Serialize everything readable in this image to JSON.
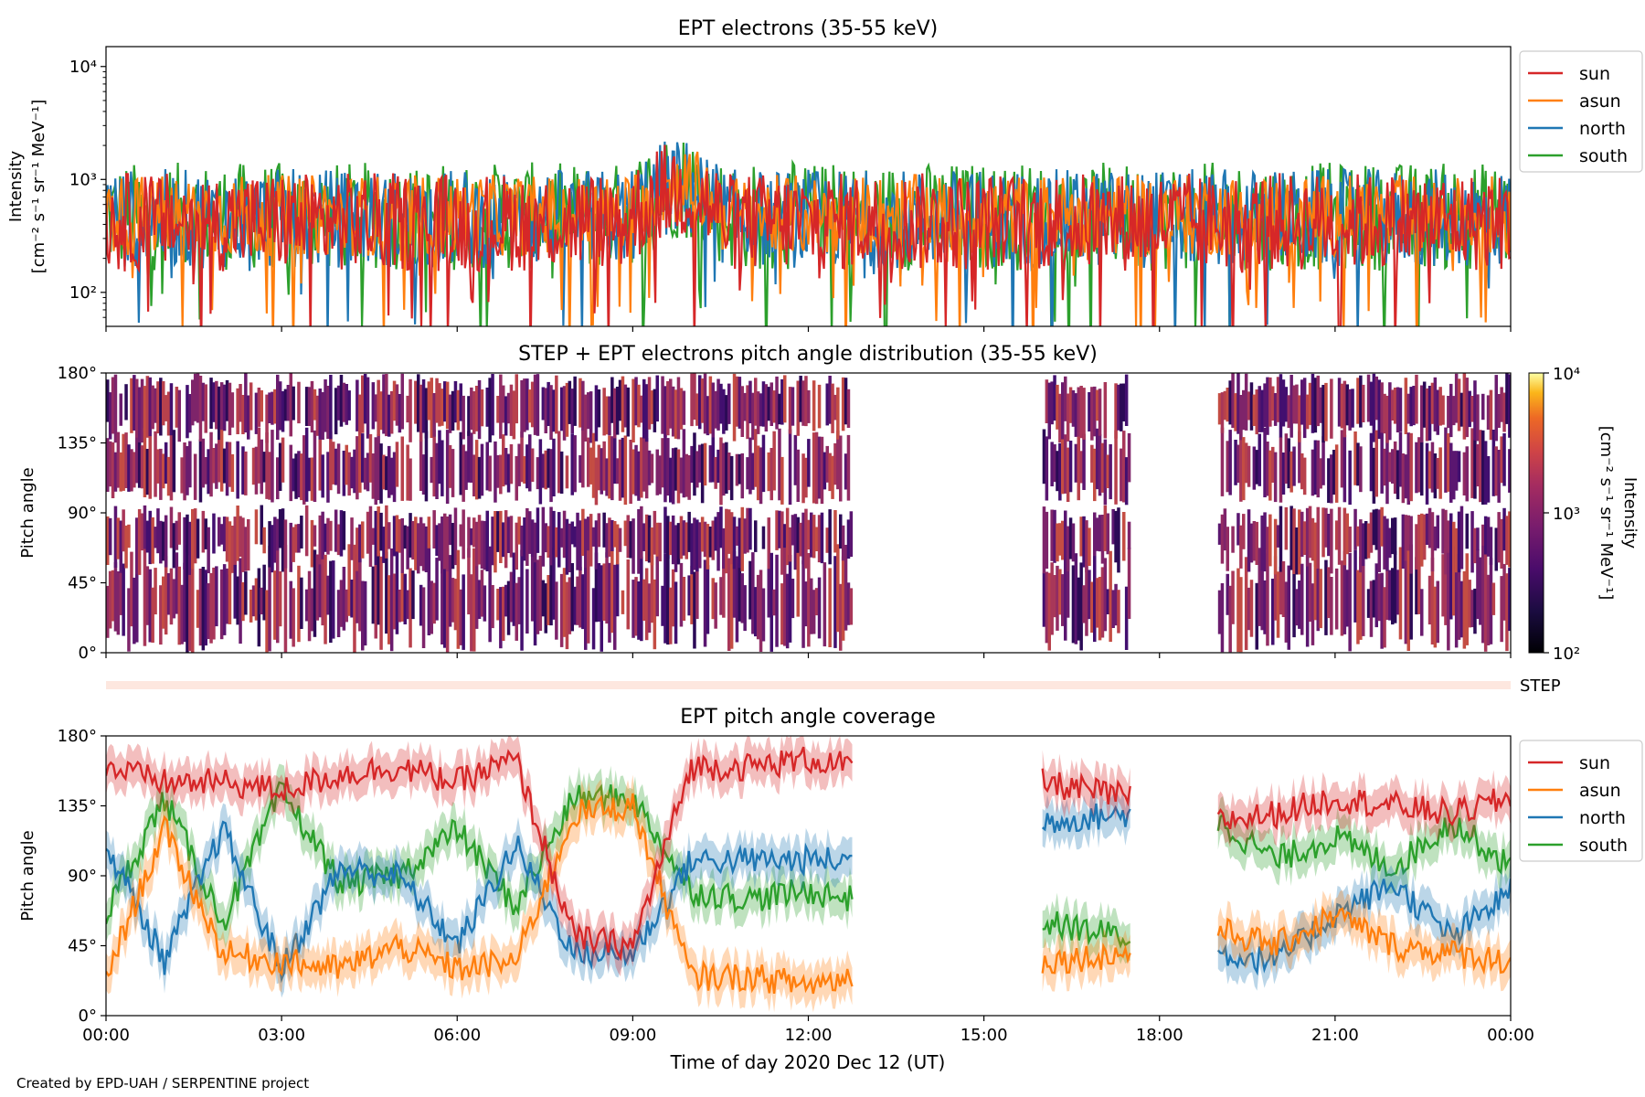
{
  "credit": "Created by EPD-UAH / SERPENTINE project",
  "xlabel": "Time of day 2020 Dec 12 (UT)",
  "xticks": [
    "00:00",
    "03:00",
    "06:00",
    "09:00",
    "12:00",
    "15:00",
    "18:00",
    "21:00",
    "00:00"
  ],
  "colors": {
    "sun": "#d62728",
    "asun": "#ff7f0e",
    "north": "#1f77b4",
    "south": "#2ca02c"
  },
  "chart_data": [
    {
      "type": "line",
      "title": "EPT electrons (35-55 keV)",
      "ylabel_line1": "Intensity",
      "ylabel_line2": "[cm⁻² s⁻¹ sr⁻¹ MeV⁻¹]",
      "yscale": "log",
      "ylim": [
        50,
        15000
      ],
      "yticks": [
        "10²",
        "10³",
        "10⁴"
      ],
      "ytick_values": [
        100,
        1000,
        10000
      ],
      "x_range_hours": [
        0,
        24
      ],
      "legend": [
        "sun",
        "asun",
        "north",
        "south"
      ],
      "legend_position": "outside-right-top",
      "series_baseline": {
        "sun": {
          "median": 420,
          "spread": 0.55
        },
        "asun": {
          "median": 480,
          "spread": 0.45
        },
        "north": {
          "median": 450,
          "spread": 0.55
        },
        "south": {
          "median": 470,
          "spread": 0.6
        }
      },
      "notable": "enhancement ~09:00-10:30 reaching ~2000"
    },
    {
      "type": "heatmap",
      "title": "STEP + EPT electrons pitch angle distribution (35-55 keV)",
      "ylabel": "Pitch angle",
      "yticks": [
        "0°",
        "45°",
        "90°",
        "135°",
        "180°"
      ],
      "ytick_values": [
        0,
        45,
        90,
        135,
        180
      ],
      "colorbar_label_line1": "Intensity",
      "colorbar_label_line2": "[cm⁻² s⁻¹ sr⁻¹ MeV⁻¹]",
      "colorbar_ticks": [
        "10²",
        "10³",
        "10⁴"
      ],
      "colorbar_range": [
        100,
        10000
      ],
      "data_intervals_hours": [
        [
          0,
          12.75
        ],
        [
          16.0,
          17.5
        ],
        [
          19.0,
          24.0
        ]
      ]
    },
    {
      "type": "bar",
      "label": "STEP",
      "color": "#fde7df"
    },
    {
      "type": "line",
      "title": "EPT pitch angle coverage",
      "ylabel": "Pitch angle",
      "yticks": [
        "0°",
        "45°",
        "90°",
        "135°",
        "180°"
      ],
      "ytick_values": [
        0,
        45,
        90,
        135,
        180
      ],
      "ylim": [
        0,
        180
      ],
      "legend": [
        "sun",
        "asun",
        "north",
        "south"
      ],
      "legend_position": "outside-right-top",
      "data_intervals_hours": [
        [
          0,
          12.75
        ],
        [
          16.0,
          17.5
        ],
        [
          19.0,
          24.0
        ]
      ],
      "series": [
        {
          "name": "sun",
          "anchors_hours": [
            0,
            1,
            2,
            3,
            4,
            5,
            6,
            7,
            8,
            9,
            10,
            11,
            12,
            12.75,
            16,
            17.5,
            19,
            20,
            21,
            22,
            23,
            24
          ],
          "values": [
            160,
            150,
            150,
            145,
            155,
            160,
            150,
            165,
            50,
            45,
            160,
            160,
            165,
            160,
            150,
            140,
            125,
            130,
            140,
            135,
            130,
            140
          ]
        },
        {
          "name": "asun",
          "anchors_hours": [
            0,
            1,
            2,
            3,
            4,
            5,
            6,
            7,
            8,
            9,
            10,
            11,
            12,
            12.75,
            16,
            17.5,
            19,
            20,
            21,
            22,
            23,
            24
          ],
          "values": [
            25,
            120,
            40,
            35,
            30,
            45,
            30,
            35,
            130,
            135,
            25,
            25,
            20,
            25,
            35,
            40,
            55,
            45,
            65,
            45,
            40,
            35
          ]
        },
        {
          "name": "north",
          "anchors_hours": [
            0,
            1,
            2,
            3,
            4,
            5,
            6,
            7,
            8,
            9,
            10,
            11,
            12,
            12.75,
            16,
            17.5,
            19,
            20,
            21,
            22,
            23,
            24
          ],
          "values": [
            110,
            35,
            120,
            30,
            95,
            90,
            45,
            110,
            40,
            40,
            100,
            100,
            100,
            100,
            125,
            130,
            40,
            35,
            65,
            85,
            50,
            80
          ]
        },
        {
          "name": "south",
          "anchors_hours": [
            0,
            1,
            2,
            3,
            4,
            5,
            6,
            7,
            8,
            9,
            10,
            11,
            12,
            12.75,
            16,
            17.5,
            19,
            20,
            21,
            22,
            23,
            24
          ],
          "values": [
            65,
            140,
            60,
            145,
            85,
            90,
            120,
            70,
            140,
            140,
            80,
            75,
            80,
            75,
            60,
            50,
            125,
            100,
            115,
            95,
            125,
            95
          ]
        }
      ]
    }
  ]
}
